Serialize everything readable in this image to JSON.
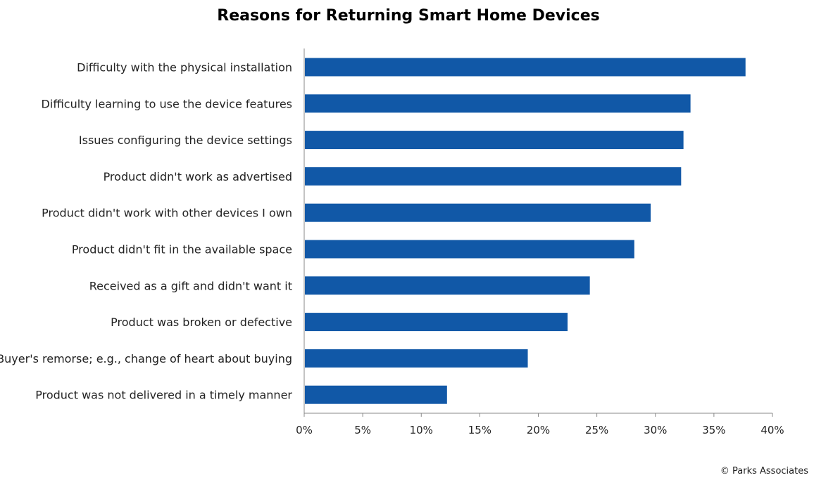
{
  "chart_data": {
    "type": "bar",
    "orientation": "horizontal",
    "title": "Reasons for Returning Smart Home Devices",
    "categories": [
      "Difficulty with the physical installation",
      "Difficulty learning to use the device features",
      "Issues configuring the device settings",
      "Product didn't work as advertised",
      "Product didn't work with other devices I own",
      "Product didn't fit in the available space",
      "Received as a gift and didn't want it",
      "Product was broken or defective",
      "Buyer's remorse; e.g., change of heart about buying",
      "Product was not delivered in a timely manner"
    ],
    "values": [
      37.7,
      33.0,
      32.4,
      32.2,
      29.6,
      28.2,
      24.4,
      22.5,
      19.1,
      12.2
    ],
    "value_unit": "percent",
    "xlim": [
      0,
      40
    ],
    "x_ticks": [
      0,
      5,
      10,
      15,
      20,
      25,
      30,
      35,
      40
    ],
    "x_tick_labels": [
      "0%",
      "5%",
      "10%",
      "15%",
      "20%",
      "25%",
      "30%",
      "35%",
      "40%"
    ],
    "xlabel": "",
    "ylabel": "",
    "grid": false,
    "legend": "none",
    "bar_color": "#1158A7"
  },
  "footer": {
    "copyright": "© Parks Associates"
  }
}
